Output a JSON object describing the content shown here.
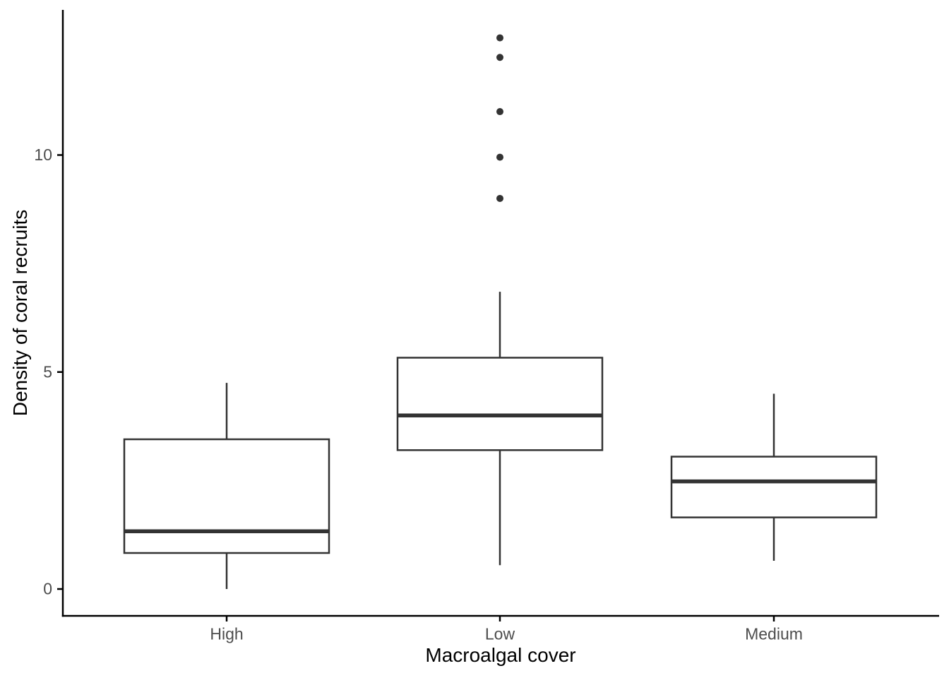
{
  "figure": {
    "background": "#ffffff"
  },
  "chart_data": {
    "type": "boxplot",
    "title": "",
    "xlabel": "Macroalgal cover",
    "ylabel": "Density of coral recruits",
    "categories": [
      "High",
      "Low",
      "Medium"
    ],
    "y_ticks": [
      "0",
      "5",
      "10"
    ],
    "y_tick_values": [
      0,
      5,
      10
    ],
    "ylim": [
      -0.62,
      13.34
    ],
    "grid": false,
    "legend": "none",
    "series": [
      {
        "name": "High",
        "whisker_low": 0.0,
        "q1": 0.83,
        "median": 1.33,
        "q3": 3.45,
        "whisker_high": 4.75,
        "outliers": []
      },
      {
        "name": "Low",
        "whisker_low": 0.55,
        "q1": 3.2,
        "median": 4.0,
        "q3": 5.33,
        "whisker_high": 6.85,
        "outliers": [
          9.0,
          9.95,
          11.0,
          12.25,
          12.7
        ]
      },
      {
        "name": "Medium",
        "whisker_low": 0.65,
        "q1": 1.65,
        "median": 2.48,
        "q3": 3.05,
        "whisker_high": 4.5,
        "outliers": []
      }
    ],
    "colors": {
      "box_stroke": "#333333",
      "box_fill": "#ffffff",
      "median": "#333333",
      "outlier": "#333333",
      "axis_line": "#000000",
      "tick_mark": "#000000",
      "tick_label": "#4d4d4d",
      "axis_title": "#000000",
      "background": "#ffffff"
    }
  }
}
